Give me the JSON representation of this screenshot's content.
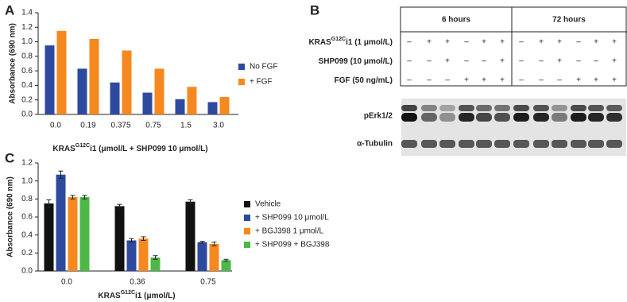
{
  "chart_data": [
    {
      "type": "bar",
      "panel": "A",
      "ylabel": "Absorbance (690 nm)",
      "xlabel": [
        "KRAS",
        "G12C",
        "i1 (μmol/L + SHP099 10 μmol/L)"
      ],
      "categories": [
        "0.0",
        "0.19",
        "0.375",
        "0.75",
        "1.5",
        "3.0"
      ],
      "series": [
        {
          "name": "No FGF",
          "color": "#2e4a9e",
          "values": [
            0.95,
            0.63,
            0.44,
            0.3,
            0.21,
            0.17
          ]
        },
        {
          "name": "+ FGF",
          "color": "#f5891f",
          "values": [
            1.15,
            1.04,
            0.88,
            0.63,
            0.38,
            0.24
          ]
        }
      ],
      "ylim": [
        0,
        1.4
      ],
      "yticks": [
        {
          "value": 0,
          "label": "0.0"
        },
        0.2,
        0.4,
        0.6,
        0.8,
        {
          "value": 1,
          "label": "1.0"
        },
        1.2,
        1.4
      ],
      "legend": "right"
    },
    {
      "type": "bar",
      "panel": "C",
      "ylabel": "Absorbance (690 nm)",
      "xlabel": [
        "KRAS",
        "G12C",
        "i1 (μmol/L)"
      ],
      "categories": [
        "0.0",
        "0.36",
        "0.75"
      ],
      "series": [
        {
          "name": "Vehicle",
          "color": "#111111",
          "values": [
            0.75,
            0.72,
            0.77
          ],
          "errors": [
            0.04,
            0.02,
            0.02
          ]
        },
        {
          "name": "+ SHP099 10 μmol/L",
          "color": "#2e4a9e",
          "values": [
            1.07,
            0.34,
            0.32
          ],
          "errors": [
            0.04,
            0.02,
            0.01
          ]
        },
        {
          "name": "+ BGJ398 1 μmol/L",
          "color": "#f5891f",
          "values": [
            0.82,
            0.36,
            0.3
          ],
          "errors": [
            0.02,
            0.02,
            0.02
          ]
        },
        {
          "name": "+ SHP099 + BGJ398",
          "color": "#4db848",
          "values": [
            0.82,
            0.15,
            0.12
          ],
          "errors": [
            0.02,
            0.02,
            0.01
          ]
        }
      ],
      "ylim": [
        0,
        1.2
      ],
      "yticks": [
        {
          "value": 0,
          "label": "0.0"
        },
        0.2,
        0.4,
        0.6,
        0.8,
        {
          "value": 1,
          "label": "1.0"
        },
        1.2
      ],
      "legend": "right"
    }
  ],
  "blot": {
    "panel": "B",
    "time_headers": [
      "6 hours",
      "72 hours"
    ],
    "conditions": [
      {
        "label": [
          "KRAS",
          "G12C",
          "i1 (1 μmol/L)"
        ],
        "signs": [
          "–",
          "+",
          "+",
          "–",
          "+",
          "+",
          "–",
          "+",
          "+",
          "–",
          "+",
          "+"
        ]
      },
      {
        "label": [
          "SHP099 (10 μmol/L)"
        ],
        "signs": [
          "–",
          "–",
          "+",
          "–",
          "–",
          "+",
          "–",
          "–",
          "+",
          "–",
          "–",
          "+"
        ]
      },
      {
        "label": [
          "FGF (50 ng/mL)"
        ],
        "signs": [
          "–",
          "–",
          "–",
          "+",
          "+",
          "+",
          "–",
          "–",
          "–",
          "+",
          "+",
          "+"
        ]
      }
    ],
    "bands": [
      "pErk1/2",
      "α-Tubulin"
    ]
  }
}
